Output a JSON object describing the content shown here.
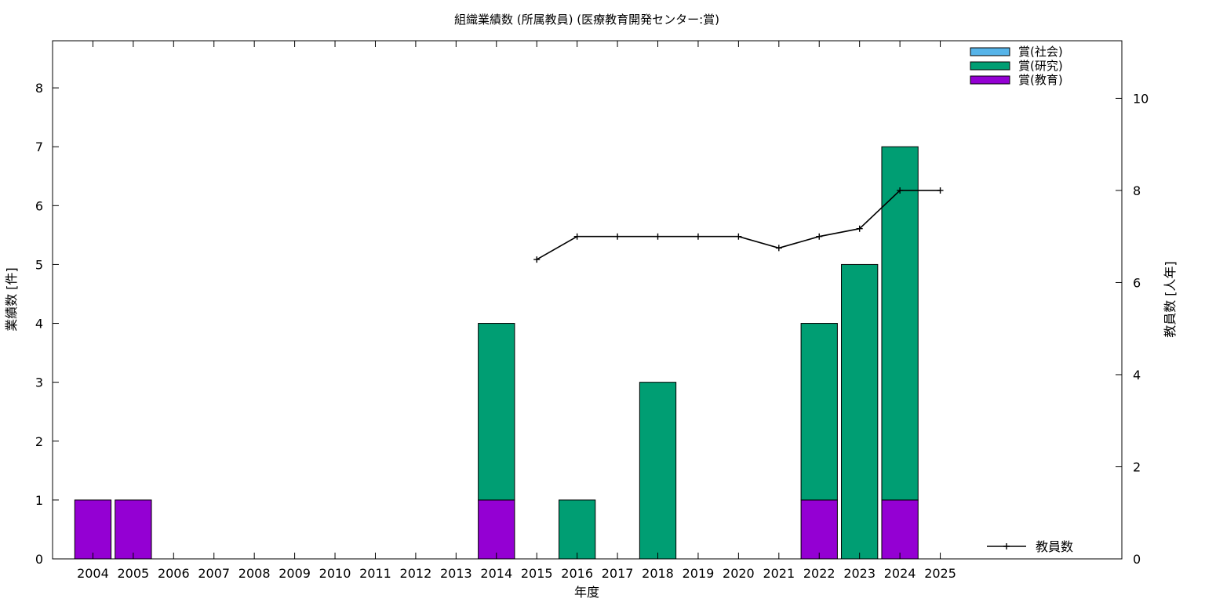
{
  "chart_data": {
    "type": "bar",
    "title": "組織業績数 (所属教員) (医療教育開発センター:賞)",
    "xlabel": "年度",
    "ylabel": "業績数 [件]",
    "y2label": "教員数 [人年]",
    "ylim": [
      0,
      8.8
    ],
    "y2lim": [
      0,
      11.25
    ],
    "yticks": [
      "0",
      "1",
      "2",
      "3",
      "4",
      "5",
      "6",
      "7",
      "8"
    ],
    "y2ticks": [
      "0",
      "2",
      "4",
      "6",
      "8",
      "10"
    ],
    "grid": false,
    "legend_position": "top-right",
    "categories": [
      "2004",
      "2005",
      "2006",
      "2007",
      "2008",
      "2009",
      "2010",
      "2011",
      "2012",
      "2013",
      "2014",
      "2015",
      "2016",
      "2017",
      "2018",
      "2019",
      "2020",
      "2021",
      "2022",
      "2023",
      "2024",
      "2025"
    ],
    "series": [
      {
        "name": "賞(教育)",
        "color": "#9400d3",
        "values": [
          1,
          1,
          0,
          0,
          0,
          0,
          0,
          0,
          0,
          0,
          1,
          0,
          0,
          0,
          0,
          0,
          0,
          0,
          1,
          0,
          1,
          0
        ]
      },
      {
        "name": "賞(研究)",
        "color": "#009e73",
        "values": [
          0,
          0,
          0,
          0,
          0,
          0,
          0,
          0,
          0,
          0,
          3,
          0,
          1,
          0,
          3,
          0,
          0,
          0,
          3,
          5,
          6,
          0
        ]
      },
      {
        "name": "賞(社会)",
        "color": "#56b4e9",
        "values": [
          0,
          0,
          0,
          0,
          0,
          0,
          0,
          0,
          0,
          0,
          0,
          0,
          0,
          0,
          0,
          0,
          0,
          0,
          0,
          0,
          0,
          0
        ]
      }
    ],
    "line_series": {
      "name": "教員数",
      "color": "#000000",
      "axis": "y2",
      "x": [
        "2015",
        "2016",
        "2017",
        "2018",
        "2019",
        "2020",
        "2021",
        "2022",
        "2023",
        "2024",
        "2025"
      ],
      "values": [
        6.5,
        7.0,
        7.0,
        7.0,
        7.0,
        7.0,
        6.75,
        7.0,
        7.17,
        8.0,
        8.0
      ]
    }
  }
}
